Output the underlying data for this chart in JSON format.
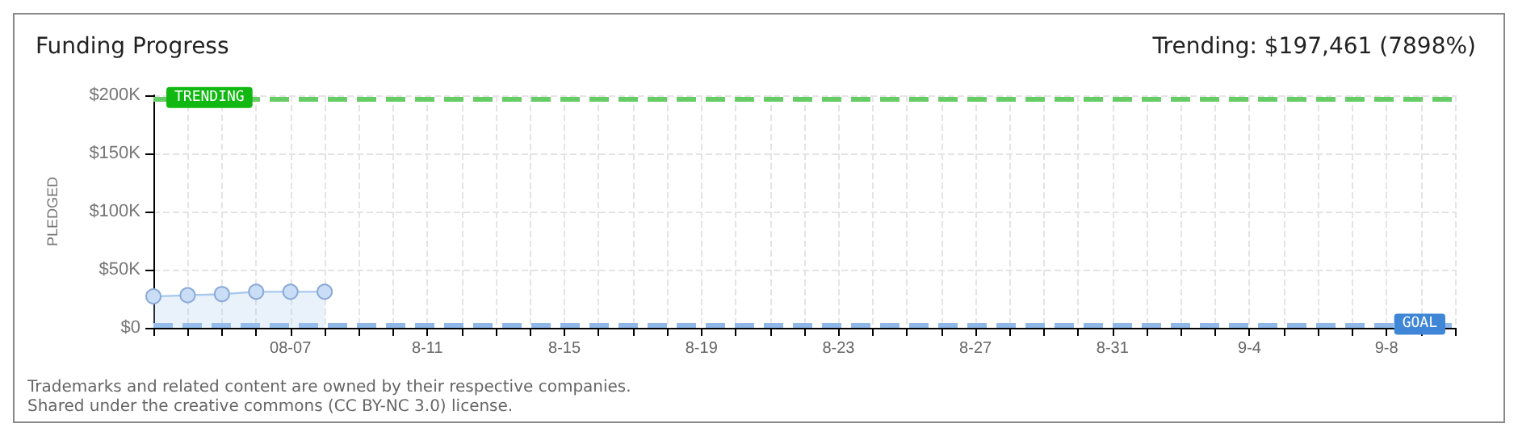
{
  "chart_data": {
    "type": "area",
    "title": "Funding Progress",
    "subtitle": "Trending: $197,461 (7898%)",
    "ylabel": "PLEDGED",
    "categories": [
      null,
      null,
      null,
      null,
      "08-07",
      null,
      null,
      null,
      "8-11",
      null,
      null,
      null,
      "8-15",
      null,
      null,
      null,
      "8-19",
      null,
      null,
      null,
      "8-23",
      null,
      null,
      null,
      "8-27",
      null,
      null,
      null,
      "8-31",
      null,
      null,
      null,
      "9-4",
      null,
      null,
      null,
      "9-8",
      null,
      null
    ],
    "series": [
      {
        "color": "#a9c8ee",
        "values": [
          27000,
          28000,
          29000,
          31000,
          31000,
          31000,
          null,
          null,
          null,
          null,
          null,
          null,
          null,
          null,
          null,
          null,
          null,
          null,
          null,
          null,
          null,
          null,
          null,
          null,
          null,
          null,
          null,
          null,
          null,
          null,
          null,
          null,
          null,
          null,
          null,
          null,
          null,
          null,
          null
        ]
      }
    ],
    "ylim": [
      0,
      200000
    ],
    "yticks": [
      {
        "value": 0,
        "label": "$0"
      },
      {
        "value": 50000,
        "label": "$50K"
      },
      {
        "value": 100000,
        "label": "$100K"
      },
      {
        "value": 150000,
        "label": "$150K"
      },
      {
        "value": 200000,
        "label": "$200K"
      }
    ],
    "grid": true,
    "marker": "circle",
    "ref_lines": [
      {
        "axis": "y",
        "value": 197461,
        "label": "TRENDING",
        "color": "#66cc66",
        "line_style": "dashed"
      },
      {
        "axis": "y",
        "value": 2500,
        "label": "GOAL",
        "color": "#8fb8e8",
        "line_style": "dashed"
      }
    ],
    "annotations": [
      "Trademarks and related content are owned by their respective companies.",
      "Shared under the creative commons (CC BY-NC 3.0) license."
    ]
  }
}
